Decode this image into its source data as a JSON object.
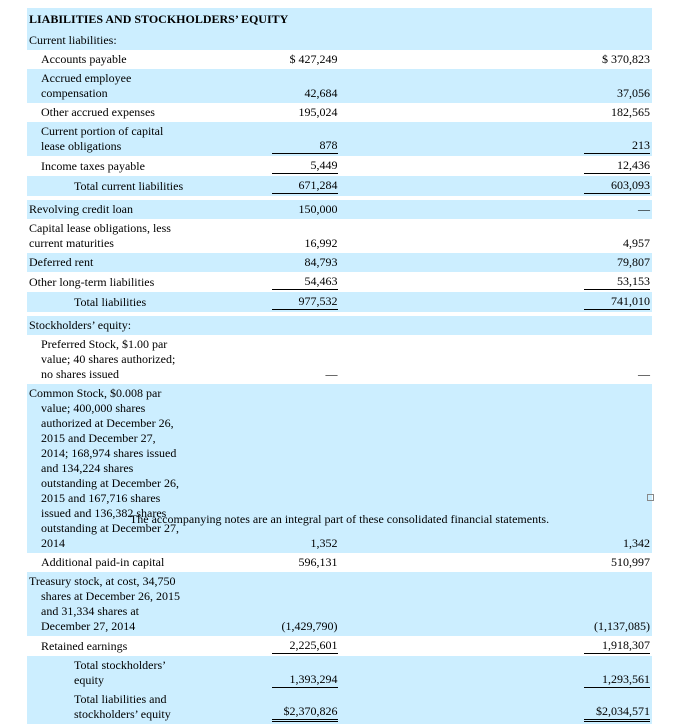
{
  "table": {
    "title": "LIABILITIES AND STOCKHOLDERS’ EQUITY",
    "rows": [
      {
        "label": "Current liabilities:",
        "values": [
          "",
          ""
        ]
      },
      {
        "label": "Accounts payable",
        "values": [
          "$ 427,249",
          "$ 370,823"
        ]
      },
      {
        "label": "Accrued employee compensation",
        "values": [
          "42,684",
          "37,056"
        ]
      },
      {
        "label": "Other accrued expenses",
        "values": [
          "195,024",
          "182,565"
        ]
      },
      {
        "label": "Current portion of capital lease obligations",
        "values": [
          "878",
          "213"
        ]
      },
      {
        "label": "Income taxes payable",
        "values": [
          "5,449",
          "12,436"
        ]
      },
      {
        "label": "Total current liabilities",
        "values": [
          "671,284",
          "603,093"
        ]
      },
      {
        "label": "Revolving credit loan",
        "values": [
          "150,000",
          "—"
        ]
      },
      {
        "label": "Capital lease obligations, less current maturities",
        "values": [
          "16,992",
          "4,957"
        ]
      },
      {
        "label": "Deferred rent",
        "values": [
          "84,793",
          "79,807"
        ]
      },
      {
        "label": "Other long-term liabilities",
        "values": [
          "54,463",
          "53,153"
        ]
      },
      {
        "label": "Total liabilities",
        "values": [
          "977,532",
          "741,010"
        ]
      },
      {
        "label": "Stockholders’ equity:",
        "values": [
          "",
          ""
        ]
      },
      {
        "label": "Preferred Stock, $1.00 par value; 40 shares authorized; no shares issued",
        "values": [
          "—",
          "—"
        ]
      },
      {
        "label": "Common Stock, $0.008 par value; 400,000 shares authorized at December 26, 2015 and December 27, 2014; 168,974 shares issued and 134,224 shares outstanding at December 26, 2015 and 167,716 shares issued and 136,382 shares outstanding at December 27, 2014",
        "values": [
          "1,352",
          "1,342"
        ]
      },
      {
        "label": "Additional paid-in capital",
        "values": [
          "596,131",
          "510,997"
        ]
      },
      {
        "label": "Treasury stock, at cost, 34,750 shares at December 26, 2015 and 31,334 shares at December 27, 2014",
        "values": [
          "(1,429,790)",
          "(1,137,085)"
        ]
      },
      {
        "label": "Retained earnings",
        "values": [
          "2,225,601",
          "1,918,307"
        ]
      },
      {
        "label": "Total stockholders’ equity",
        "values": [
          "1,393,294",
          "1,293,561"
        ]
      },
      {
        "label": "Total liabilities and stockholders’ equity",
        "values": [
          "$2,370,826",
          "$2,034,571"
        ]
      }
    ]
  },
  "footer": {
    "note": "The accompanying notes are an integral part of these consolidated financial statements."
  }
}
